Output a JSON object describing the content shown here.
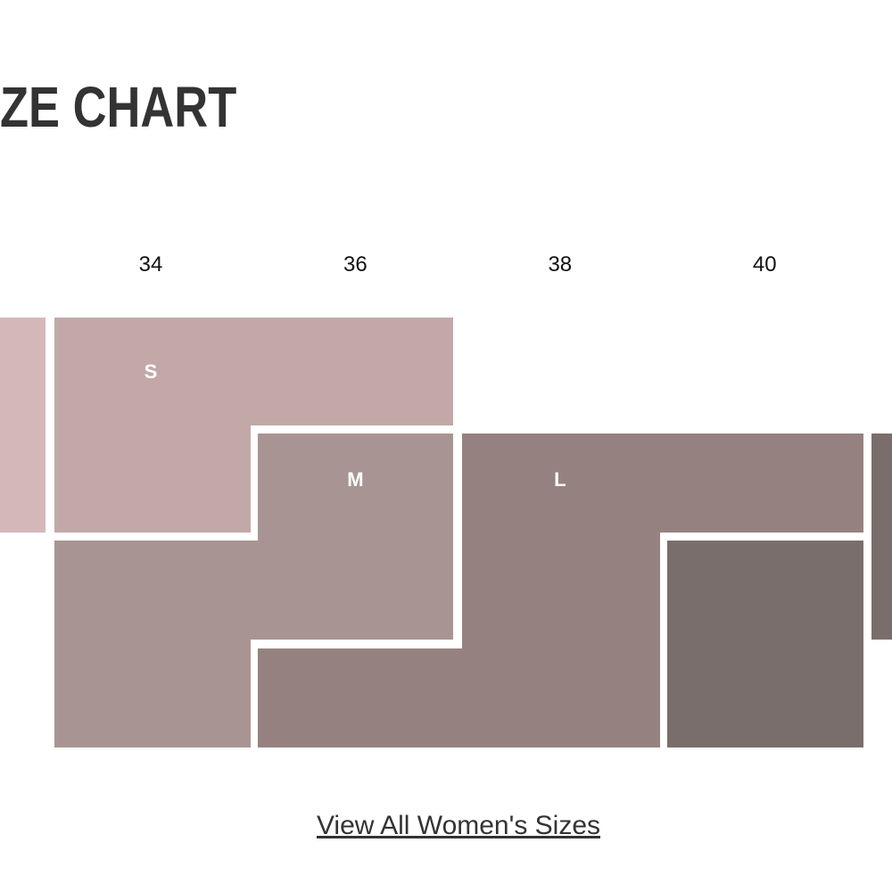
{
  "header": {
    "title": "ZE CHART"
  },
  "columns": [
    34,
    36,
    38,
    40
  ],
  "sizes": [
    "S",
    "M",
    "L"
  ],
  "link": "View All Women's Sizes"
}
